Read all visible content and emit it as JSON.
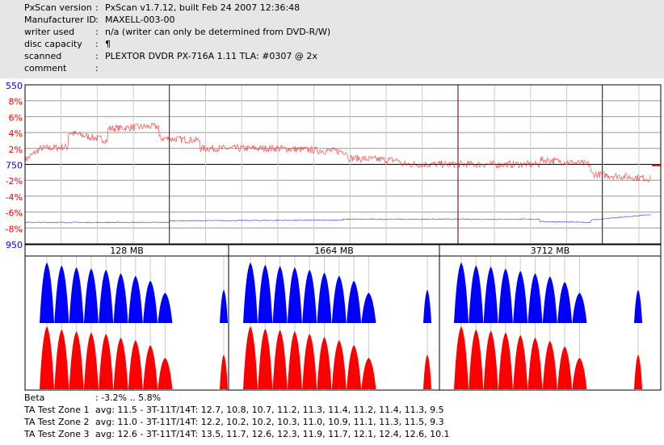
{
  "header": [
    {
      "key": "PxScan version",
      "value": "PxScan v1.7.12, built Feb 24 2007 12:36:48"
    },
    {
      "key": "Manufacturer ID",
      "value": "MAXELL-003-00"
    },
    {
      "key": "writer used",
      "value": "n/a (writer can only be determined from DVD-R/W)"
    },
    {
      "key": "disc capacity",
      "value": "¶"
    },
    {
      "key": "scanned",
      "value": "PLEXTOR DVDR PX-716A 1.11 TLA: #0307 @ 2x"
    },
    {
      "key": "comment",
      "value": ""
    }
  ],
  "separator": ":",
  "chart_data": {
    "type": "line",
    "y_tick_labels": [
      {
        "label": "550",
        "color": "#0000ff"
      },
      {
        "label": "8%",
        "color": "#ff0000"
      },
      {
        "label": "6%",
        "color": "#ff0000"
      },
      {
        "label": "4%",
        "color": "#ff0000"
      },
      {
        "label": "2%",
        "color": "#ff0000"
      },
      {
        "label": "750",
        "color": "#0000ff"
      },
      {
        "label": "-2%",
        "color": "#ff0000"
      },
      {
        "label": "-4%",
        "color": "#ff0000"
      },
      {
        "label": "-6%",
        "color": "#ff0000"
      },
      {
        "label": "-8%",
        "color": "#ff0000"
      },
      {
        "label": "950",
        "color": "#0000ff"
      }
    ],
    "ylim": [
      -10,
      10
    ],
    "xlim": [
      0,
      100
    ],
    "zone_markers": [
      22.7,
      68.1,
      90.8
    ],
    "series": [
      {
        "name": "beta",
        "color": "#ff0000",
        "segments": [
          [
            0,
            0.5,
            2.0
          ],
          [
            2.4,
            2.0,
            2.2
          ],
          [
            6.8,
            4.0,
            3.0
          ],
          [
            13,
            4.5,
            4.8
          ],
          [
            21.1,
            3.3,
            3.0
          ],
          [
            27.6,
            2.0,
            2.0
          ],
          [
            40,
            2.0,
            1.6
          ],
          [
            50.7,
            0.8,
            0.5
          ],
          [
            59,
            0.0,
            0.0
          ],
          [
            75,
            0.0,
            0.0
          ],
          [
            81,
            0.6,
            0.0
          ],
          [
            89,
            -1.2,
            -1.8
          ],
          [
            98.5,
            -0.1,
            -0.1
          ]
        ]
      },
      {
        "name": "jitter",
        "color": "#0000ff",
        "segments": [
          [
            0,
            -7.3,
            -7.3
          ],
          [
            22.7,
            -7.1,
            -7.0
          ],
          [
            50,
            -6.9,
            -6.9
          ],
          [
            81,
            -7.2,
            -7.3
          ],
          [
            89,
            -7.0,
            -6.2
          ]
        ]
      }
    ],
    "ta_zones": [
      {
        "label": "128 MB",
        "peaks": [
          1,
          0.95,
          0.92,
          0.9,
          0.88,
          0.82,
          0.78,
          0.7,
          0.5,
          0.55
        ]
      },
      {
        "label": "1664 MB",
        "peaks": [
          1,
          0.96,
          0.94,
          0.92,
          0.88,
          0.83,
          0.78,
          0.7,
          0.5,
          0.55
        ]
      },
      {
        "label": "3712 MB",
        "peaks": [
          1,
          0.95,
          0.93,
          0.9,
          0.86,
          0.82,
          0.77,
          0.68,
          0.5,
          0.55
        ]
      }
    ]
  },
  "footer": [
    {
      "key": "Beta",
      "value": ": -3.2% .. 5.8%"
    },
    {
      "key": "TA Test Zone 1",
      "value": "avg: 11.5 - 3T-11T/14T: 12.7, 10.8, 10.7, 11.2, 11.3, 11.4, 11.2, 11.4, 11.3, 9.5"
    },
    {
      "key": "TA Test Zone 2",
      "value": "avg: 11.0 - 3T-11T/14T: 12.2, 10.2, 10.2, 10.3, 11.0, 10.9, 11.1, 11.3, 11.5, 9.3"
    },
    {
      "key": "TA Test Zone 3",
      "value": "avg: 12.6 - 3T-11T/14T: 13.5, 11.7, 12.6, 12.3, 11.9, 11.7, 12.1, 12.4, 12.6, 10.1"
    }
  ]
}
